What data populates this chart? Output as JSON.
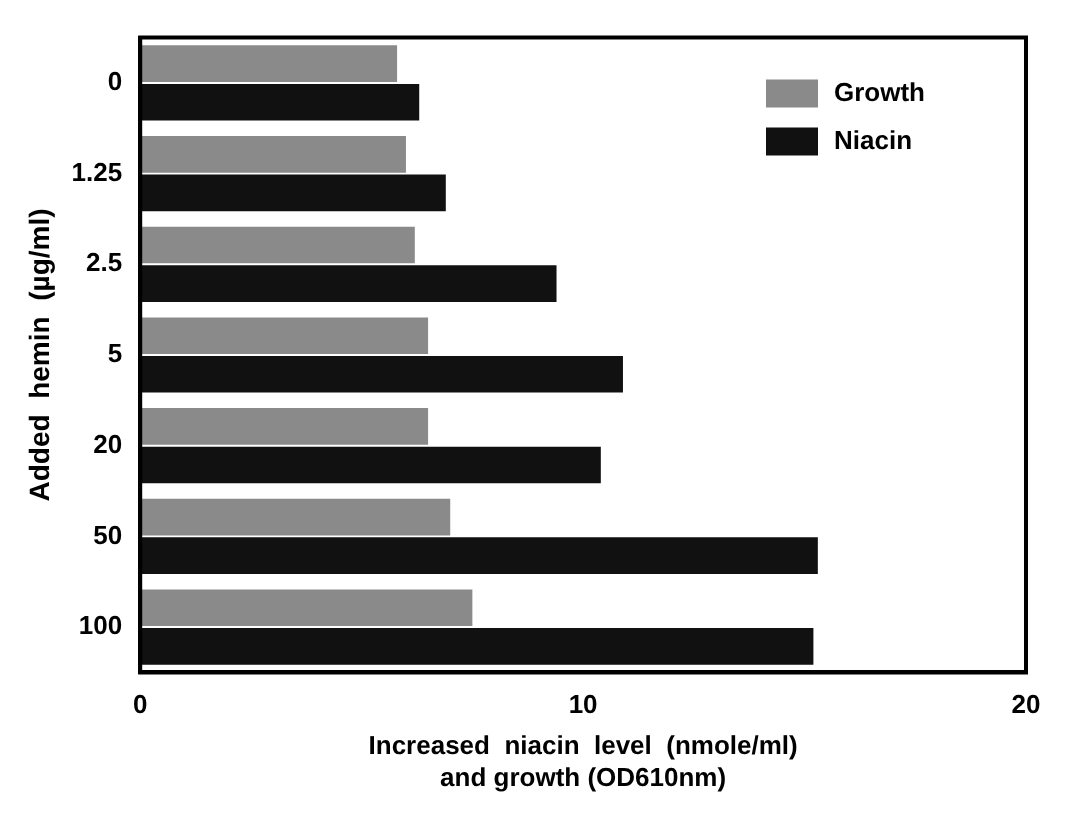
{
  "chart_data": {
    "type": "bar",
    "orientation": "horizontal",
    "xlabel": "Increased  niacin  level  (nmole/ml)\nand growth (OD610nm)",
    "ylabel": "Added  hemin  (µg/ml)",
    "categories": [
      "0",
      "1.25",
      "2.5",
      "5",
      "20",
      "50",
      "100"
    ],
    "series": [
      {
        "name": "Growth",
        "color": "#8a8a8a",
        "values": [
          5.8,
          6.0,
          6.2,
          6.5,
          6.5,
          7.0,
          7.5
        ]
      },
      {
        "name": "Niacin",
        "color": "#111111",
        "values": [
          6.3,
          6.9,
          9.4,
          10.9,
          10.4,
          15.3,
          15.2
        ]
      }
    ],
    "xlim": [
      0,
      20
    ],
    "xticks": [
      0,
      10,
      20
    ],
    "grid": false,
    "legend": "top right"
  }
}
